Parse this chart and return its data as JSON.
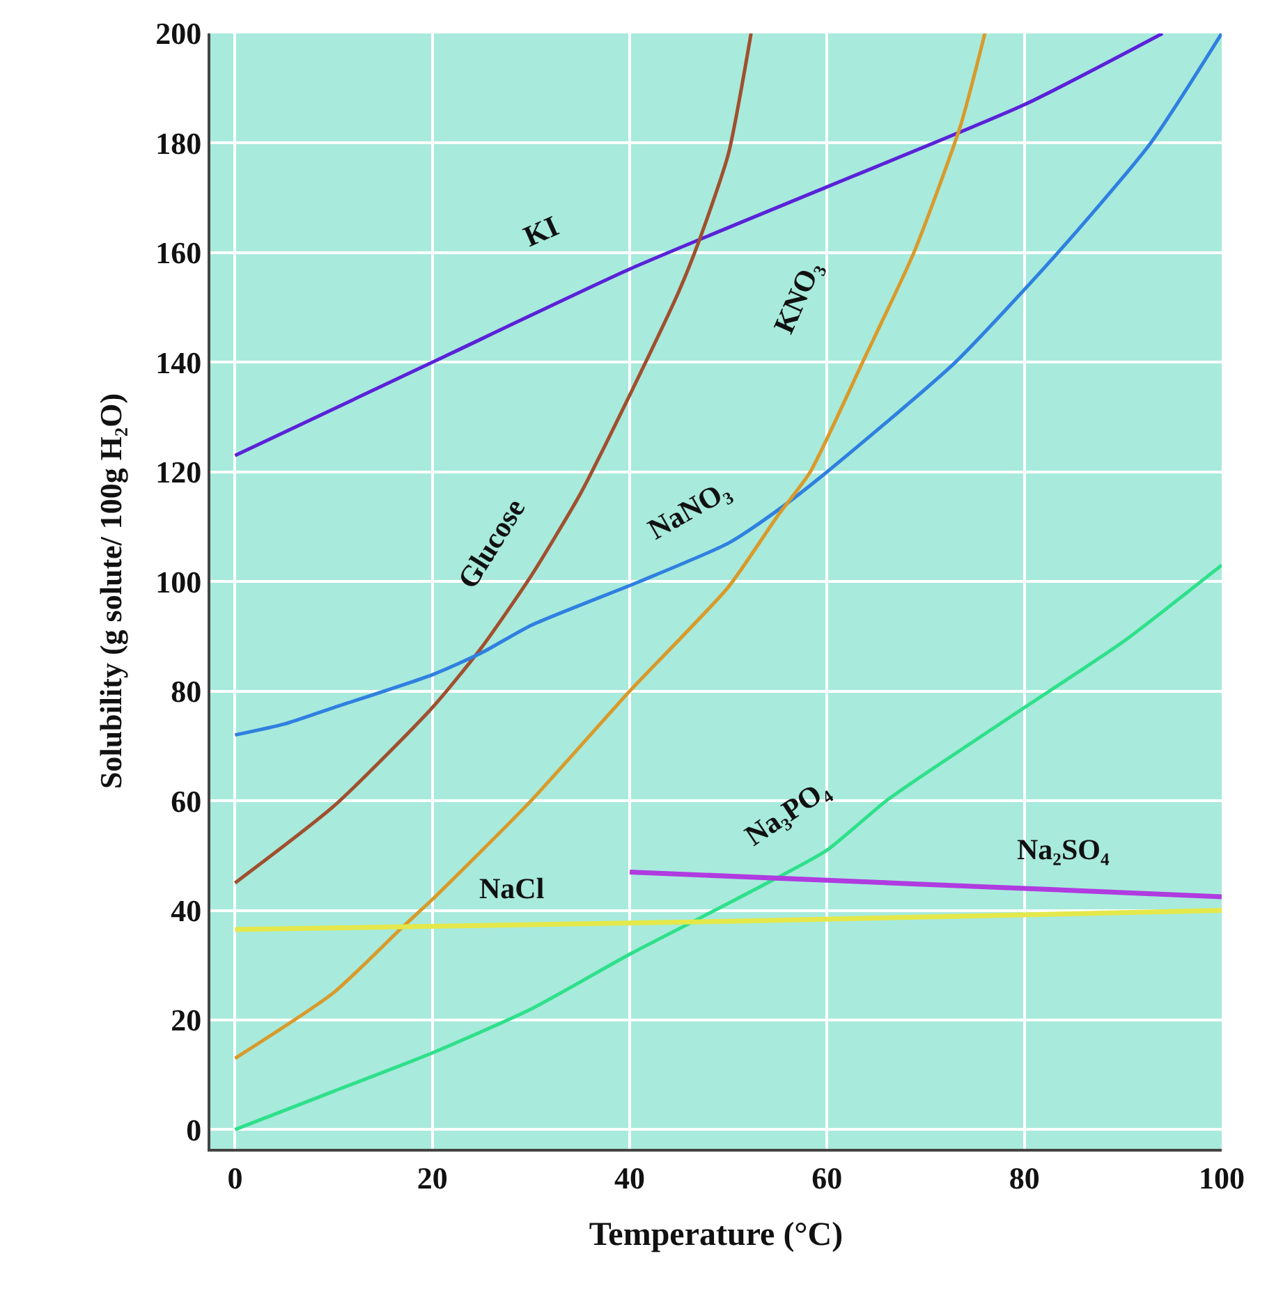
{
  "chart_data": {
    "type": "line",
    "xlabel": "Temperature (°C)",
    "ylabel": "Solubility (g solute/ 100g H₂O)",
    "xlim": [
      -2.5,
      100
    ],
    "xticks": [
      0,
      20,
      40,
      60,
      80,
      100
    ],
    "ylim": [
      -3.5,
      200
    ],
    "yticks": [
      0,
      20,
      40,
      60,
      80,
      100,
      120,
      140,
      160,
      180,
      200
    ],
    "grid": true,
    "legend": false,
    "marker": "none",
    "line_style": "solid",
    "series": [
      {
        "name": "KI",
        "color": "#5a22d8",
        "x": [
          0,
          20,
          40,
          60,
          80,
          94
        ],
        "values": [
          123,
          140,
          157,
          172,
          187,
          200
        ]
      },
      {
        "name": "Glucose",
        "color": "#a0502e",
        "x": [
          0,
          10,
          20,
          25,
          30,
          35,
          40,
          45,
          47,
          50,
          52.3
        ],
        "values": [
          45,
          59,
          77,
          88,
          101,
          116,
          134,
          153,
          162,
          178,
          200
        ]
      },
      {
        "name": "NaNO₃",
        "color": "#2f80e0",
        "x": [
          0,
          5,
          10,
          20,
          25,
          30,
          41,
          50,
          55,
          60,
          73,
          83.4,
          92.8,
          100
        ],
        "values": [
          72,
          74,
          77,
          83,
          87,
          92,
          100,
          107,
          113,
          120,
          140,
          160,
          180,
          200
        ]
      },
      {
        "name": "KNO₃",
        "color": "#d99a2a",
        "x": [
          0,
          10,
          17,
          20,
          30,
          40,
          50,
          55,
          58.3,
          63.6,
          68.8,
          73.5,
          76
        ],
        "values": [
          13,
          25,
          37,
          42,
          60,
          80,
          99,
          112,
          120,
          140,
          160,
          183,
          200
        ]
      },
      {
        "name": "Na₃PO₄",
        "color": "#2ee08a",
        "x": [
          0,
          10,
          20,
          30,
          40,
          47,
          55,
          60,
          66,
          70,
          80,
          90,
          100
        ],
        "values": [
          0,
          7,
          14,
          22,
          32,
          38.5,
          46,
          51,
          60,
          65,
          77,
          89,
          103
        ]
      },
      {
        "name": "Na₂SO₄",
        "color": "#b03be0",
        "x": [
          40,
          60,
          80,
          100
        ],
        "values": [
          47,
          45.5,
          44,
          42.5
        ]
      },
      {
        "name": "NaCl",
        "color": "#e4e84a",
        "x": [
          0,
          50,
          100
        ],
        "values": [
          36.5,
          38,
          40
        ]
      }
    ]
  }
}
